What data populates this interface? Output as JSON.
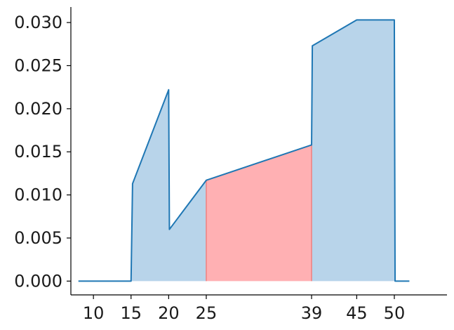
{
  "chart_data": {
    "type": "area",
    "title": "",
    "xlabel": "",
    "ylabel": "",
    "xlim": [
      7,
      57
    ],
    "ylim": [
      -0.0016,
      0.0318
    ],
    "xticks": [
      10,
      15,
      20,
      25,
      39,
      45,
      50
    ],
    "yticks": [
      0.0,
      0.005,
      0.01,
      0.015,
      0.02,
      0.025,
      0.03
    ],
    "ytick_labels": [
      "0.000",
      "0.005",
      "0.010",
      "0.015",
      "0.020",
      "0.025",
      "0.030"
    ],
    "grid": false,
    "legend": "none",
    "series": [
      {
        "x": [
          8,
          15,
          15.2,
          20,
          20.1,
          25,
          39,
          39.1,
          45,
          50,
          50.1,
          52
        ],
        "y": [
          0,
          0,
          0.0113,
          0.0222,
          0.006,
          0.0117,
          0.0158,
          0.0273,
          0.0303,
          0.0303,
          0,
          0
        ]
      }
    ],
    "highlight_interval": [
      25,
      39
    ],
    "colors": {
      "line": "#1f77b4",
      "fill": "#b8d4ea",
      "highlight_fill": "#ffb0b3",
      "highlight_edge": "#f08080",
      "axis": "#000000"
    }
  }
}
